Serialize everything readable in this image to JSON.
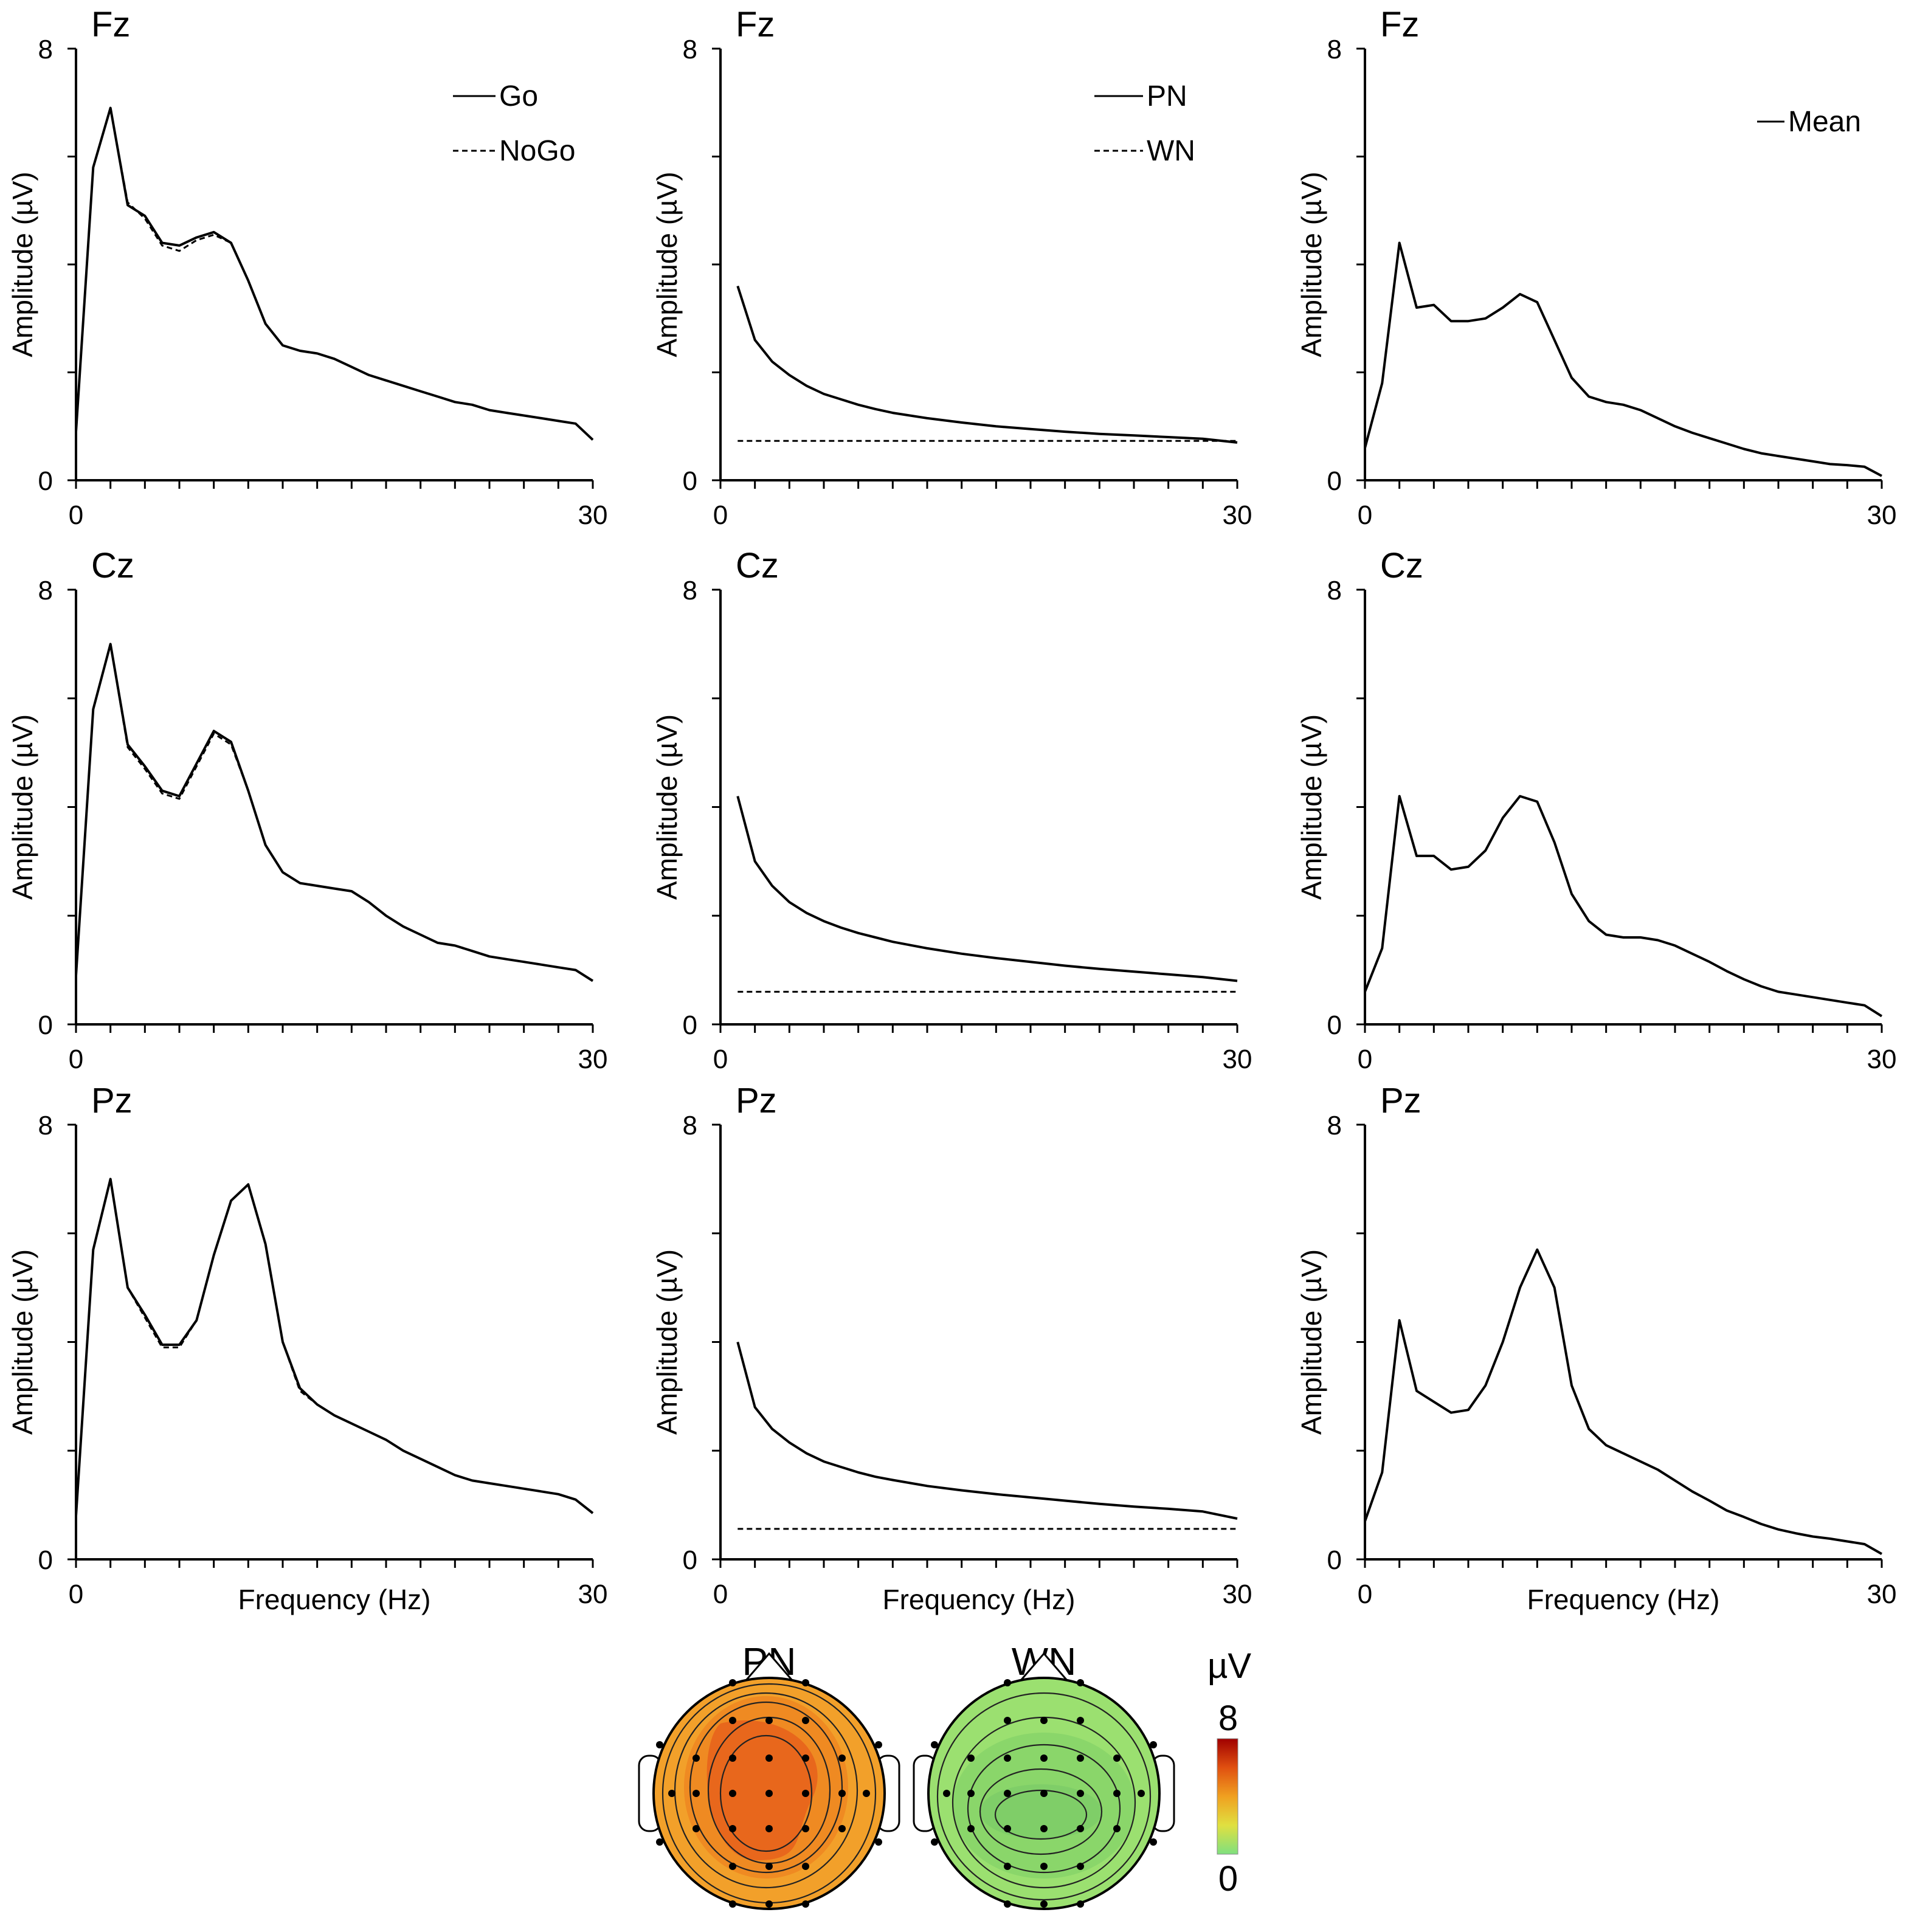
{
  "chart_data": [
    {
      "type": "line",
      "panel_title": "Fz",
      "xlabel": "",
      "ylabel": "Amplitude (µV)",
      "xlim": [
        0,
        30
      ],
      "ylim": [
        0,
        8
      ],
      "x_tick_labels": [
        "0",
        "30"
      ],
      "y_tick_labels": [
        "0",
        "8"
      ],
      "legend": [
        {
          "name": "Go",
          "style": "solid"
        },
        {
          "name": "NoGo",
          "style": "dashed"
        }
      ],
      "series": [
        {
          "name": "Go",
          "style": "solid",
          "x": [
            0,
            1,
            2,
            3,
            4,
            5,
            6,
            7,
            8,
            9,
            10,
            11,
            12,
            13,
            14,
            15,
            16,
            17,
            18,
            19,
            20,
            21,
            22,
            23,
            24,
            25,
            26,
            27,
            28,
            29,
            30
          ],
          "values": [
            0.9,
            5.8,
            6.9,
            5.1,
            4.9,
            4.4,
            4.35,
            4.5,
            4.6,
            4.4,
            3.7,
            2.9,
            2.5,
            2.4,
            2.35,
            2.25,
            2.1,
            1.95,
            1.85,
            1.75,
            1.65,
            1.55,
            1.45,
            1.4,
            1.3,
            1.25,
            1.2,
            1.15,
            1.1,
            1.05,
            0.75
          ]
        },
        {
          "name": "NoGo",
          "style": "dashed",
          "x": [
            0,
            1,
            2,
            3,
            4,
            5,
            6,
            7,
            8,
            9,
            10,
            11,
            12,
            13,
            14,
            15,
            16,
            17,
            18,
            19,
            20,
            21,
            22,
            23,
            24,
            25,
            26,
            27,
            28,
            29,
            30
          ],
          "values": [
            0.9,
            5.8,
            6.9,
            5.15,
            4.85,
            4.35,
            4.25,
            4.45,
            4.55,
            4.4,
            3.7,
            2.9,
            2.5,
            2.4,
            2.35,
            2.25,
            2.1,
            1.95,
            1.85,
            1.75,
            1.65,
            1.55,
            1.45,
            1.4,
            1.3,
            1.25,
            1.2,
            1.15,
            1.1,
            1.05,
            0.75
          ]
        }
      ]
    },
    {
      "type": "line",
      "panel_title": "Fz",
      "xlabel": "",
      "ylabel": "Amplitude (µV)",
      "xlim": [
        0,
        30
      ],
      "ylim": [
        0,
        8
      ],
      "x_tick_labels": [
        "0",
        "30"
      ],
      "y_tick_labels": [
        "0",
        "8"
      ],
      "legend": [
        {
          "name": "PN",
          "style": "solid"
        },
        {
          "name": "WN",
          "style": "dashed"
        }
      ],
      "series": [
        {
          "name": "PN",
          "style": "solid",
          "x": [
            1,
            2,
            3,
            4,
            5,
            6,
            7,
            8,
            9,
            10,
            12,
            14,
            16,
            18,
            20,
            22,
            24,
            26,
            28,
            30
          ],
          "values": [
            3.6,
            2.6,
            2.2,
            1.95,
            1.75,
            1.6,
            1.5,
            1.4,
            1.32,
            1.25,
            1.15,
            1.07,
            1.0,
            0.95,
            0.9,
            0.86,
            0.83,
            0.8,
            0.77,
            0.7
          ]
        },
        {
          "name": "WN",
          "style": "dashed",
          "x": [
            1,
            30
          ],
          "values": [
            0.73,
            0.73
          ]
        }
      ]
    },
    {
      "type": "line",
      "panel_title": "Fz",
      "xlabel": "",
      "ylabel": "Amplitude (µV)",
      "xlim": [
        0,
        30
      ],
      "ylim": [
        0,
        8
      ],
      "x_tick_labels": [
        "0",
        "30"
      ],
      "y_tick_labels": [
        "0",
        "8"
      ],
      "legend": [
        {
          "name": "Mean",
          "style": "solid"
        }
      ],
      "series": [
        {
          "name": "Mean",
          "style": "solid",
          "x": [
            0,
            1,
            2,
            3,
            4,
            5,
            6,
            7,
            8,
            9,
            10,
            11,
            12,
            13,
            14,
            15,
            16,
            17,
            18,
            19,
            20,
            21,
            22,
            23,
            24,
            25,
            26,
            27,
            28,
            29,
            30
          ],
          "values": [
            0.6,
            1.8,
            4.4,
            3.2,
            3.25,
            2.95,
            2.95,
            3.0,
            3.2,
            3.45,
            3.3,
            2.6,
            1.9,
            1.55,
            1.45,
            1.4,
            1.3,
            1.15,
            1.0,
            0.88,
            0.78,
            0.68,
            0.58,
            0.5,
            0.45,
            0.4,
            0.35,
            0.3,
            0.28,
            0.25,
            0.08
          ]
        }
      ]
    },
    {
      "type": "line",
      "panel_title": "Cz",
      "xlabel": "",
      "ylabel": "Amplitude (µV)",
      "xlim": [
        0,
        30
      ],
      "ylim": [
        0,
        8
      ],
      "x_tick_labels": [
        "0",
        "30"
      ],
      "y_tick_labels": [
        "0",
        "8"
      ],
      "legend": [],
      "series": [
        {
          "name": "Go",
          "style": "solid",
          "x": [
            0,
            1,
            2,
            3,
            4,
            5,
            6,
            7,
            8,
            9,
            10,
            11,
            12,
            13,
            14,
            15,
            16,
            17,
            18,
            19,
            20,
            21,
            22,
            23,
            24,
            25,
            26,
            27,
            28,
            29,
            30
          ],
          "values": [
            0.9,
            5.8,
            7.0,
            5.15,
            4.75,
            4.3,
            4.2,
            4.8,
            5.4,
            5.2,
            4.3,
            3.3,
            2.8,
            2.6,
            2.55,
            2.5,
            2.45,
            2.25,
            2.0,
            1.8,
            1.65,
            1.5,
            1.45,
            1.35,
            1.25,
            1.2,
            1.15,
            1.1,
            1.05,
            1.0,
            0.8
          ]
        },
        {
          "name": "NoGo",
          "style": "dashed",
          "x": [
            0,
            1,
            2,
            3,
            4,
            5,
            6,
            7,
            8,
            9,
            10,
            11,
            12,
            13,
            14,
            15,
            16,
            17,
            18,
            19,
            20,
            21,
            22,
            23,
            24,
            25,
            26,
            27,
            28,
            29,
            30
          ],
          "values": [
            0.9,
            5.8,
            7.0,
            5.1,
            4.7,
            4.25,
            4.15,
            4.75,
            5.35,
            5.15,
            4.3,
            3.3,
            2.8,
            2.6,
            2.55,
            2.5,
            2.45,
            2.25,
            2.0,
            1.8,
            1.65,
            1.5,
            1.45,
            1.35,
            1.25,
            1.2,
            1.15,
            1.1,
            1.05,
            1.0,
            0.8
          ]
        }
      ]
    },
    {
      "type": "line",
      "panel_title": "Cz",
      "xlabel": "",
      "ylabel": "Amplitude (µV)",
      "xlim": [
        0,
        30
      ],
      "ylim": [
        0,
        8
      ],
      "x_tick_labels": [
        "0",
        "30"
      ],
      "y_tick_labels": [
        "0",
        "8"
      ],
      "legend": [],
      "series": [
        {
          "name": "PN",
          "style": "solid",
          "x": [
            1,
            2,
            3,
            4,
            5,
            6,
            7,
            8,
            9,
            10,
            12,
            14,
            16,
            18,
            20,
            22,
            24,
            26,
            28,
            30
          ],
          "values": [
            4.2,
            3.0,
            2.55,
            2.25,
            2.05,
            1.9,
            1.78,
            1.68,
            1.6,
            1.52,
            1.4,
            1.3,
            1.22,
            1.15,
            1.08,
            1.02,
            0.97,
            0.92,
            0.87,
            0.8
          ]
        },
        {
          "name": "WN",
          "style": "dashed",
          "x": [
            1,
            30
          ],
          "values": [
            0.6,
            0.6
          ]
        }
      ]
    },
    {
      "type": "line",
      "panel_title": "Cz",
      "xlabel": "",
      "ylabel": "Amplitude (µV)",
      "xlim": [
        0,
        30
      ],
      "ylim": [
        0,
        8
      ],
      "x_tick_labels": [
        "0",
        "30"
      ],
      "y_tick_labels": [
        "0",
        "8"
      ],
      "legend": [],
      "series": [
        {
          "name": "Mean",
          "style": "solid",
          "x": [
            0,
            1,
            2,
            3,
            4,
            5,
            6,
            7,
            8,
            9,
            10,
            11,
            12,
            13,
            14,
            15,
            16,
            17,
            18,
            19,
            20,
            21,
            22,
            23,
            24,
            25,
            26,
            27,
            28,
            29,
            30
          ],
          "values": [
            0.6,
            1.4,
            4.2,
            3.1,
            3.1,
            2.85,
            2.9,
            3.2,
            3.8,
            4.2,
            4.1,
            3.35,
            2.4,
            1.9,
            1.65,
            1.6,
            1.6,
            1.55,
            1.45,
            1.3,
            1.15,
            0.98,
            0.83,
            0.7,
            0.6,
            0.55,
            0.5,
            0.45,
            0.4,
            0.35,
            0.15
          ]
        }
      ]
    },
    {
      "type": "line",
      "panel_title": "Pz",
      "xlabel": "Frequency (Hz)",
      "ylabel": "Amplitude (µV)",
      "xlim": [
        0,
        30
      ],
      "ylim": [
        0,
        8
      ],
      "x_tick_labels": [
        "0",
        "30"
      ],
      "y_tick_labels": [
        "0",
        "8"
      ],
      "legend": [],
      "series": [
        {
          "name": "Go",
          "style": "solid",
          "x": [
            0,
            1,
            2,
            3,
            4,
            5,
            6,
            7,
            8,
            9,
            10,
            11,
            12,
            13,
            14,
            15,
            16,
            17,
            18,
            19,
            20,
            21,
            22,
            23,
            24,
            25,
            26,
            27,
            28,
            29,
            30
          ],
          "values": [
            0.8,
            5.7,
            7.0,
            5.0,
            4.5,
            3.95,
            3.95,
            4.4,
            5.6,
            6.6,
            6.9,
            5.8,
            4.0,
            3.15,
            2.85,
            2.65,
            2.5,
            2.35,
            2.2,
            2.0,
            1.85,
            1.7,
            1.55,
            1.45,
            1.4,
            1.35,
            1.3,
            1.25,
            1.2,
            1.1,
            0.85
          ]
        },
        {
          "name": "NoGo",
          "style": "dashed",
          "x": [
            0,
            1,
            2,
            3,
            4,
            5,
            6,
            7,
            8,
            9,
            10,
            11,
            12,
            13,
            14,
            15,
            16,
            17,
            18,
            19,
            20,
            21,
            22,
            23,
            24,
            25,
            26,
            27,
            28,
            29,
            30
          ],
          "values": [
            0.8,
            5.7,
            7.0,
            5.0,
            4.45,
            3.9,
            3.9,
            4.4,
            5.6,
            6.6,
            6.9,
            5.8,
            4.0,
            3.1,
            2.85,
            2.65,
            2.5,
            2.35,
            2.2,
            2.0,
            1.85,
            1.7,
            1.55,
            1.45,
            1.4,
            1.35,
            1.3,
            1.25,
            1.2,
            1.1,
            0.85
          ]
        }
      ]
    },
    {
      "type": "line",
      "panel_title": "Pz",
      "xlabel": "Frequency (Hz)",
      "ylabel": "Amplitude (µV)",
      "xlim": [
        0,
        30
      ],
      "ylim": [
        0,
        8
      ],
      "x_tick_labels": [
        "0",
        "30"
      ],
      "y_tick_labels": [
        "0",
        "8"
      ],
      "legend": [],
      "series": [
        {
          "name": "PN",
          "style": "solid",
          "x": [
            1,
            2,
            3,
            4,
            5,
            6,
            7,
            8,
            9,
            10,
            12,
            14,
            16,
            18,
            20,
            22,
            24,
            26,
            28,
            30
          ],
          "values": [
            4.0,
            2.8,
            2.4,
            2.15,
            1.95,
            1.8,
            1.7,
            1.6,
            1.52,
            1.46,
            1.35,
            1.27,
            1.2,
            1.14,
            1.08,
            1.02,
            0.97,
            0.93,
            0.88,
            0.75
          ]
        },
        {
          "name": "WN",
          "style": "dashed",
          "x": [
            1,
            30
          ],
          "values": [
            0.56,
            0.56
          ]
        }
      ]
    },
    {
      "type": "line",
      "panel_title": "Pz",
      "xlabel": "Frequency (Hz)",
      "ylabel": "Amplitude (µV)",
      "xlim": [
        0,
        30
      ],
      "ylim": [
        0,
        8
      ],
      "x_tick_labels": [
        "0",
        "30"
      ],
      "y_tick_labels": [
        "0",
        "8"
      ],
      "legend": [],
      "series": [
        {
          "name": "Mean",
          "style": "solid",
          "x": [
            0,
            1,
            2,
            3,
            4,
            5,
            6,
            7,
            8,
            9,
            10,
            11,
            12,
            13,
            14,
            15,
            16,
            17,
            18,
            19,
            20,
            21,
            22,
            23,
            24,
            25,
            26,
            27,
            28,
            29,
            30
          ],
          "values": [
            0.7,
            1.6,
            4.4,
            3.1,
            2.9,
            2.7,
            2.75,
            3.2,
            4.0,
            5.0,
            5.7,
            5.0,
            3.2,
            2.4,
            2.1,
            1.95,
            1.8,
            1.65,
            1.45,
            1.25,
            1.08,
            0.9,
            0.78,
            0.65,
            0.55,
            0.48,
            0.42,
            0.38,
            0.33,
            0.28,
            0.1
          ]
        }
      ]
    }
  ],
  "topomaps": {
    "maps": [
      {
        "title": "PN"
      },
      {
        "title": "WN"
      }
    ],
    "colorbar": {
      "unit": "µV",
      "max_label": "8",
      "min_label": "0",
      "min": 0,
      "max": 8,
      "colors": [
        "#7fe07f",
        "#e0e040",
        "#f0a020",
        "#e05010",
        "#a00000"
      ]
    },
    "pn_colors": {
      "outer": "#f2a02a",
      "mid": "#ef8a22",
      "inner": "#e8671c"
    },
    "wn_colors": {
      "outer": "#9be070",
      "mid": "#8ad66a",
      "inner": "#7fce68"
    }
  }
}
